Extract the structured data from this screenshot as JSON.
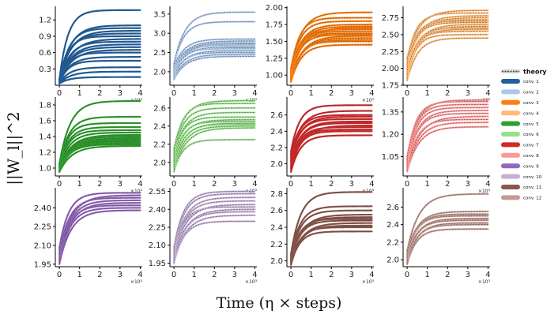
{
  "chart_data": {
    "type": "line",
    "ylabel": "||W_l||^2",
    "xlabel": "Time (η × steps)",
    "x_exponent": "×10³",
    "xlim": [
      -0.2,
      4.1
    ],
    "xticks": [
      "0",
      "1",
      "2",
      "3",
      "4"
    ],
    "legend": {
      "title": "theory",
      "placement": "right",
      "entries": [
        {
          "name": "conv. 1",
          "color": "#1f5f9e"
        },
        {
          "name": "conv. 2",
          "color": "#aec7e8"
        },
        {
          "name": "conv. 3",
          "color": "#ff7f0e"
        },
        {
          "name": "conv. 4",
          "color": "#ffbb78"
        },
        {
          "name": "conv. 5",
          "color": "#2ca02c"
        },
        {
          "name": "conv. 6",
          "color": "#98df8a"
        },
        {
          "name": "conv. 7",
          "color": "#d62728"
        },
        {
          "name": "conv. 8",
          "color": "#ff9896"
        },
        {
          "name": "conv. 9",
          "color": "#9467bd"
        },
        {
          "name": "conv. 10",
          "color": "#c5b0d5"
        },
        {
          "name": "conv. 11",
          "color": "#8c564b"
        },
        {
          "name": "conv. 12",
          "color": "#c49c94"
        }
      ]
    },
    "panels": [
      {
        "layer": "conv. 1",
        "color": "#1f5f9e",
        "ylim": [
          0.0,
          1.45
        ],
        "yticks": [
          0.3,
          0.6,
          0.9,
          1.2
        ],
        "ytick_labels": [
          "0.3",
          "0.6",
          "0.9",
          "1.2"
        ],
        "series_start": [
          0.03,
          0.1
        ],
        "series_end": [
          0.15,
          0.25,
          0.33,
          0.45,
          0.52,
          0.6,
          0.65,
          0.7,
          0.75,
          0.8,
          0.85,
          0.9,
          0.95,
          1.0,
          1.05,
          1.1,
          1.38
        ]
      },
      {
        "layer": "conv. 2",
        "color": "#aec7e8",
        "ylim": [
          1.65,
          3.7
        ],
        "yticks": [
          2.0,
          2.5,
          3.0,
          3.5
        ],
        "ytick_labels": [
          "2.0",
          "2.5",
          "3.0",
          "3.5"
        ],
        "series_start": [
          1.8,
          2.2
        ],
        "series_end": [
          2.4,
          2.45,
          2.5,
          2.55,
          2.6,
          2.62,
          2.65,
          2.7,
          2.72,
          2.75,
          2.8,
          2.85,
          3.3,
          3.55
        ]
      },
      {
        "layer": "conv. 3",
        "color": "#ff7f0e",
        "ylim": [
          0.85,
          2.02
        ],
        "yticks": [
          1.0,
          1.25,
          1.5,
          1.75,
          2.0
        ],
        "ytick_labels": [
          "1.00",
          "1.25",
          "1.50",
          "1.75",
          "2.00"
        ],
        "series_start": [
          0.9,
          1.1
        ],
        "series_end": [
          1.45,
          1.5,
          1.52,
          1.55,
          1.58,
          1.6,
          1.62,
          1.65,
          1.68,
          1.7,
          1.72,
          1.75,
          1.8,
          1.85,
          1.93
        ]
      },
      {
        "layer": "conv. 4",
        "color": "#ffbb78",
        "ylim": [
          1.75,
          2.92
        ],
        "yticks": [
          1.75,
          2.0,
          2.25,
          2.5,
          2.75
        ],
        "ytick_labels": [
          "1.75",
          "2.00",
          "2.25",
          "2.50",
          "2.75"
        ],
        "series_start": [
          1.82,
          2.15
        ],
        "series_end": [
          2.45,
          2.5,
          2.55,
          2.58,
          2.6,
          2.62,
          2.65,
          2.68,
          2.7,
          2.72,
          2.75,
          2.78,
          2.82,
          2.86
        ]
      },
      {
        "layer": "conv. 5",
        "color": "#2ca02c",
        "ylim": [
          0.9,
          1.9
        ],
        "yticks": [
          1.0,
          1.2,
          1.4,
          1.6,
          1.8
        ],
        "ytick_labels": [
          "1.0",
          "1.2",
          "1.4",
          "1.6",
          "1.8"
        ],
        "series_start": [
          0.95,
          1.05
        ],
        "series_end": [
          1.28,
          1.3,
          1.32,
          1.34,
          1.36,
          1.38,
          1.4,
          1.42,
          1.45,
          1.48,
          1.52,
          1.57,
          1.65,
          1.85
        ]
      },
      {
        "layer": "conv. 6",
        "color": "#98df8a",
        "ylim": [
          1.85,
          2.72
        ],
        "yticks": [
          2.0,
          2.2,
          2.4,
          2.6
        ],
        "ytick_labels": [
          "2.0",
          "2.2",
          "2.4",
          "2.6"
        ],
        "series_start": [
          1.9,
          2.15
        ],
        "series_end": [
          2.25,
          2.38,
          2.4,
          2.42,
          2.43,
          2.45,
          2.47,
          2.5,
          2.55,
          2.6,
          2.65,
          2.68
        ]
      },
      {
        "layer": "conv. 7",
        "color": "#d62728",
        "ylim": [
          1.85,
          2.82
        ],
        "yticks": [
          2.0,
          2.2,
          2.4,
          2.6
        ],
        "ytick_labels": [
          "2.0",
          "2.2",
          "2.4",
          "2.6"
        ],
        "series_start": [
          1.9,
          2.15
        ],
        "series_end": [
          2.35,
          2.4,
          2.42,
          2.45,
          2.47,
          2.5,
          2.52,
          2.55,
          2.58,
          2.6,
          2.65,
          2.72
        ]
      },
      {
        "layer": "conv. 8",
        "color": "#ff9896",
        "ylim": [
          0.92,
          1.45
        ],
        "yticks": [
          1.05,
          1.2,
          1.35
        ],
        "ytick_labels": [
          "1.05",
          "1.20",
          "1.35"
        ],
        "series_start": [
          0.95,
          1.05
        ],
        "series_end": [
          1.25,
          1.28,
          1.3,
          1.32,
          1.34,
          1.36,
          1.38,
          1.4,
          1.42,
          1.43
        ]
      },
      {
        "layer": "conv. 9",
        "color": "#9467bd",
        "ylim": [
          1.93,
          2.56
        ],
        "yticks": [
          1.95,
          2.1,
          2.25,
          2.4
        ],
        "ytick_labels": [
          "1.95",
          "2.10",
          "2.25",
          "2.40"
        ],
        "series_start": [
          1.95,
          2.08
        ],
        "series_end": [
          2.38,
          2.4,
          2.42,
          2.44,
          2.46,
          2.48,
          2.5,
          2.52
        ]
      },
      {
        "layer": "conv. 10",
        "color": "#c5b0d5",
        "ylim": [
          1.92,
          2.58
        ],
        "yticks": [
          1.95,
          2.1,
          2.25,
          2.4,
          2.55
        ],
        "ytick_labels": [
          "1.95",
          "2.10",
          "2.25",
          "2.40",
          "2.55"
        ],
        "series_start": [
          1.95,
          2.08
        ],
        "series_end": [
          2.3,
          2.35,
          2.38,
          2.4,
          2.42,
          2.44,
          2.47,
          2.5,
          2.53,
          2.55
        ]
      },
      {
        "layer": "conv. 11",
        "color": "#8c564b",
        "ylim": [
          1.93,
          2.87
        ],
        "yticks": [
          2.0,
          2.2,
          2.4,
          2.6,
          2.8
        ],
        "ytick_labels": [
          "2.0",
          "2.2",
          "2.4",
          "2.6",
          "2.8"
        ],
        "series_start": [
          1.95,
          2.08
        ],
        "series_end": [
          2.35,
          2.4,
          2.42,
          2.45,
          2.48,
          2.5,
          2.52,
          2.55,
          2.6,
          2.65,
          2.82
        ]
      },
      {
        "layer": "conv. 12",
        "color": "#c49c94",
        "ylim": [
          1.92,
          2.82
        ],
        "yticks": [
          2.0,
          2.2,
          2.4,
          2.6
        ],
        "ytick_labels": [
          "2.0",
          "2.2",
          "2.4",
          "2.6"
        ],
        "series_start": [
          1.95,
          2.1
        ],
        "series_end": [
          2.35,
          2.4,
          2.42,
          2.45,
          2.47,
          2.5,
          2.52,
          2.55,
          2.75
        ]
      }
    ]
  }
}
